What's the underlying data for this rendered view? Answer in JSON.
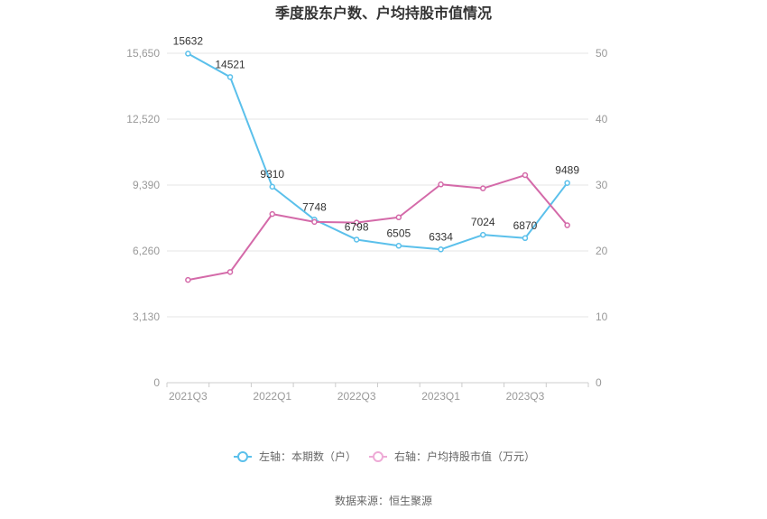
{
  "chart_data": {
    "type": "line",
    "title": "季度股东户数、户均持股市值情况",
    "categories": [
      "2021Q3",
      "2021Q4",
      "2022Q1",
      "2022Q2",
      "2022Q3",
      "2022Q4",
      "2023Q1",
      "2023Q2",
      "2023Q3",
      "2023Q4"
    ],
    "x_tick_labels": [
      "2021Q3",
      "",
      "2022Q1",
      "",
      "2022Q3",
      "",
      "2023Q1",
      "",
      "2023Q3",
      ""
    ],
    "series": [
      {
        "name": "左轴：本期数（户）",
        "axis": "left",
        "color": "#5bc0eb",
        "values": [
          15632,
          14521,
          9310,
          7748,
          6798,
          6505,
          6334,
          7024,
          6870,
          9489
        ],
        "labels": [
          "15632",
          "14521",
          "9310",
          "7748",
          "6798",
          "6505",
          "6334",
          "7024",
          "6870",
          "9489"
        ]
      },
      {
        "name": "右轴：户均持股市值（万元）",
        "axis": "right",
        "color": "#d46aa9",
        "values": [
          15.6,
          16.8,
          25.6,
          24.4,
          24.3,
          25.1,
          30.1,
          29.5,
          31.5,
          23.9
        ]
      }
    ],
    "y_left": {
      "min": 0,
      "max": 15650,
      "ticks": [
        0,
        3130,
        6260,
        9390,
        12520,
        15650
      ],
      "tick_labels": [
        "0",
        "3,130",
        "6,260",
        "9,390",
        "12,520",
        "15,650"
      ]
    },
    "y_right": {
      "min": 0,
      "max": 50,
      "ticks": [
        0,
        10,
        20,
        30,
        40,
        50
      ],
      "tick_labels": [
        "0",
        "10",
        "20",
        "30",
        "40",
        "50"
      ]
    },
    "grid": true,
    "legend_position": "bottom"
  },
  "source_text": "数据来源：恒生聚源"
}
